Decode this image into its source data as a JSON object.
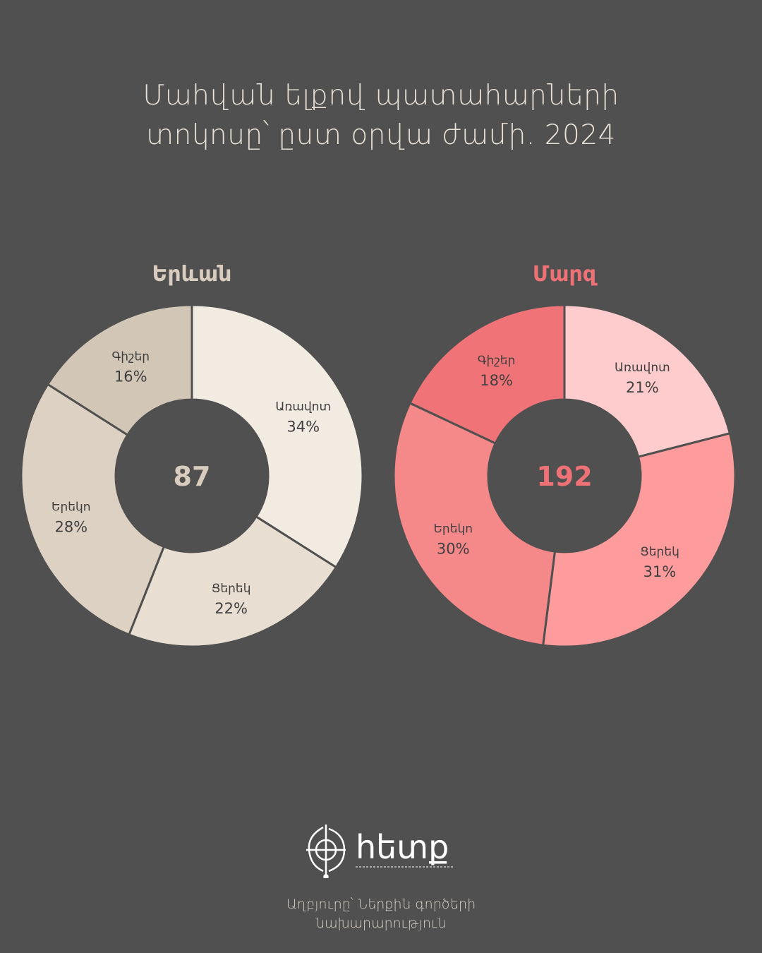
{
  "title_lines": [
    "Մահվան ելքով պատահարների",
    "տոկոսը՝ ըստ օրվա ժամի. 2024"
  ],
  "chart_data": [
    {
      "type": "pie",
      "title": "Երևան",
      "center_label": "87",
      "title_color": "#d7ccbd",
      "segments": [
        {
          "label": "Առավոտ",
          "value": 34,
          "value_label": "34%",
          "color": "#f2ebe1"
        },
        {
          "label": "Ցերեկ",
          "value": 22,
          "value_label": "22%",
          "color": "#e8dfd2"
        },
        {
          "label": "Երեկո",
          "value": 28,
          "value_label": "28%",
          "color": "#dcd1c2"
        },
        {
          "label": "Գիշեր",
          "value": 16,
          "value_label": "16%",
          "color": "#d2c7b7"
        }
      ]
    },
    {
      "type": "pie",
      "title": "Մարզ",
      "center_label": "192",
      "title_color": "#ee7176",
      "segments": [
        {
          "label": "Առավոտ",
          "value": 21,
          "value_label": "21%",
          "color": "#fecccd"
        },
        {
          "label": "Ցերեկ",
          "value": 31,
          "value_label": "31%",
          "color": "#fe9c9d"
        },
        {
          "label": "Երեկո",
          "value": 30,
          "value_label": "30%",
          "color": "#f58889"
        },
        {
          "label": "Գիշեր",
          "value": 18,
          "value_label": "18%",
          "color": "#f07477"
        }
      ]
    }
  ],
  "logo": {
    "text": "հետք",
    "icon": "target-cross-icon"
  },
  "source_lines": [
    "Աղբյուրը՝ Ներքին գործերի",
    "նախարարություն"
  ]
}
